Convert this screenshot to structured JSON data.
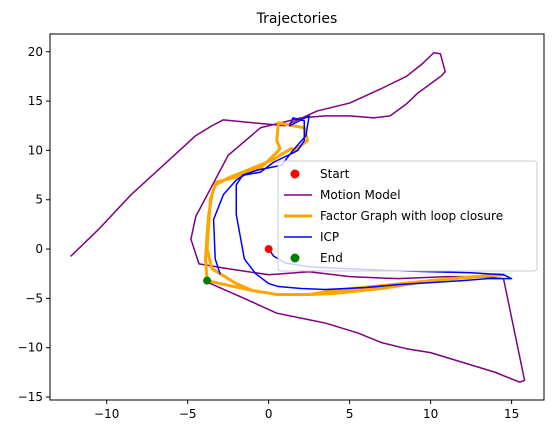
{
  "chart_data": {
    "type": "line",
    "title": "Trajectories",
    "xlabel": "",
    "ylabel": "",
    "xlim": [
      -13.5,
      17
    ],
    "ylim": [
      -15.3,
      21.8
    ],
    "xticks": [
      -10,
      -5,
      0,
      5,
      10,
      15
    ],
    "yticks": [
      -15,
      -10,
      -5,
      0,
      5,
      10,
      15,
      20
    ],
    "grid": false,
    "legend_position": "center-right",
    "series": [
      {
        "name": "Motion Model",
        "color": "#800080",
        "linewidth": 1.5,
        "x": [
          -12.2,
          -10.5,
          -8.5,
          -6.5,
          -4.5,
          -3.5,
          -2.8,
          -1.0,
          1.0,
          3.0,
          5.0,
          7.0,
          8.5,
          9.5,
          10.2,
          10.6,
          10.9,
          10.7,
          10.2,
          9.2,
          8.5,
          7.5,
          6.5,
          5.0,
          3.5,
          2.0,
          -0.5,
          -2.5,
          -4.5,
          -4.8,
          -4.3,
          -2.5,
          0.0,
          2.5,
          5.0,
          8.0,
          11.0,
          13.0,
          14.5,
          15.8,
          15.5,
          14.0,
          12.0,
          10.0,
          8.5,
          7.0,
          5.5,
          3.5,
          2.0,
          0.5,
          -1.5,
          -4.0
        ],
        "y": [
          -0.7,
          2.0,
          5.5,
          8.5,
          11.5,
          12.5,
          13.1,
          12.8,
          12.5,
          14.0,
          14.8,
          16.3,
          17.5,
          18.8,
          19.9,
          19.8,
          18.0,
          17.6,
          17.0,
          15.8,
          14.7,
          13.5,
          13.3,
          13.5,
          13.5,
          13.3,
          12.3,
          9.5,
          3.3,
          1.0,
          -1.5,
          -2.0,
          -2.6,
          -2.3,
          -2.8,
          -3.0,
          -2.8,
          -2.8,
          -3.0,
          -13.3,
          -13.5,
          -12.5,
          -11.5,
          -10.5,
          -10.1,
          -9.5,
          -8.5,
          -7.5,
          -7.0,
          -6.5,
          -5.0,
          -3.2
        ]
      },
      {
        "name": "Factor Graph with loop closure",
        "color": "#FFA500",
        "linewidth": 3,
        "x": [
          -3.8,
          -3.9,
          -3.8,
          -3.7,
          -3.5,
          -3.3,
          -3.2,
          -2.0,
          -0.5,
          0.0,
          0.5,
          0.7,
          0.5,
          0.6,
          1.5,
          2.2,
          2.4,
          1.6,
          1.4,
          0.2,
          -1.0,
          -2.5,
          -3.3,
          -3.6,
          -3.8,
          -3.5,
          -2.0,
          -1.0,
          0.5,
          2.5,
          4.0,
          7.0,
          10.0,
          12.0,
          14.0,
          14.5,
          13.0,
          10.0,
          7.0,
          4.0,
          2.5,
          0.5,
          -1.0,
          -3.0,
          -3.8
        ],
        "y": [
          -3.2,
          -1.0,
          1.5,
          3.5,
          5.5,
          6.5,
          6.8,
          7.3,
          8.2,
          9.0,
          9.8,
          10.2,
          11.0,
          12.8,
          12.5,
          12.3,
          11.0,
          10.0,
          10.2,
          9.0,
          8.2,
          7.2,
          6.5,
          5.0,
          0.0,
          -2.0,
          -3.5,
          -4.2,
          -4.6,
          -4.6,
          -4.5,
          -4.0,
          -3.2,
          -2.9,
          -2.6,
          -2.6,
          -2.8,
          -3.2,
          -3.7,
          -4.2,
          -4.6,
          -4.6,
          -4.2,
          -3.5,
          -3.2
        ]
      },
      {
        "name": "ICP",
        "color": "#0000FF",
        "linewidth": 1.5,
        "x": [
          -3.0,
          -3.3,
          -3.4,
          -2.8,
          -2.0,
          -1.5,
          -0.5,
          0.3,
          1.2,
          1.8,
          2.2,
          2.2,
          1.5,
          1.3,
          2.5,
          2.3,
          1.5,
          0.8,
          -0.7,
          -1.6,
          -2.0,
          -2.0,
          -1.5,
          -0.8,
          0.0,
          0.6,
          2.0,
          3.5,
          6.0,
          8.0,
          10.0,
          12.0,
          13.5,
          15.0,
          14.5,
          12.5,
          10.0,
          8.0,
          5.0,
          2.5,
          1.0,
          0.3,
          0.0
        ],
        "y": [
          -2.5,
          -1.0,
          3.0,
          5.5,
          7.0,
          7.5,
          7.8,
          8.8,
          9.5,
          10.0,
          11.0,
          13.0,
          13.3,
          12.5,
          13.5,
          11.5,
          10.0,
          8.5,
          8.0,
          7.5,
          6.5,
          3.5,
          -1.0,
          -2.5,
          -3.5,
          -3.8,
          -4.0,
          -4.1,
          -3.9,
          -3.6,
          -3.4,
          -3.2,
          -3.0,
          -3.0,
          -2.6,
          -2.4,
          -2.3,
          -2.2,
          -2.0,
          -1.8,
          -1.4,
          -0.7,
          0.0
        ]
      }
    ],
    "scatter": [
      {
        "name": "Start",
        "color": "#FF0000",
        "x": 0.0,
        "y": 0.0
      },
      {
        "name": "End",
        "color": "#008000",
        "x": -3.8,
        "y": -3.2
      }
    ],
    "legend": [
      {
        "label": "Start",
        "kind": "marker",
        "color": "#FF0000"
      },
      {
        "label": "Motion Model",
        "kind": "line",
        "color": "#800080",
        "width": 1.5
      },
      {
        "label": "Factor Graph with loop closure",
        "kind": "line",
        "color": "#FFA500",
        "width": 3
      },
      {
        "label": "ICP",
        "kind": "line",
        "color": "#0000FF",
        "width": 1.5
      },
      {
        "label": "End",
        "kind": "marker",
        "color": "#008000"
      }
    ]
  }
}
